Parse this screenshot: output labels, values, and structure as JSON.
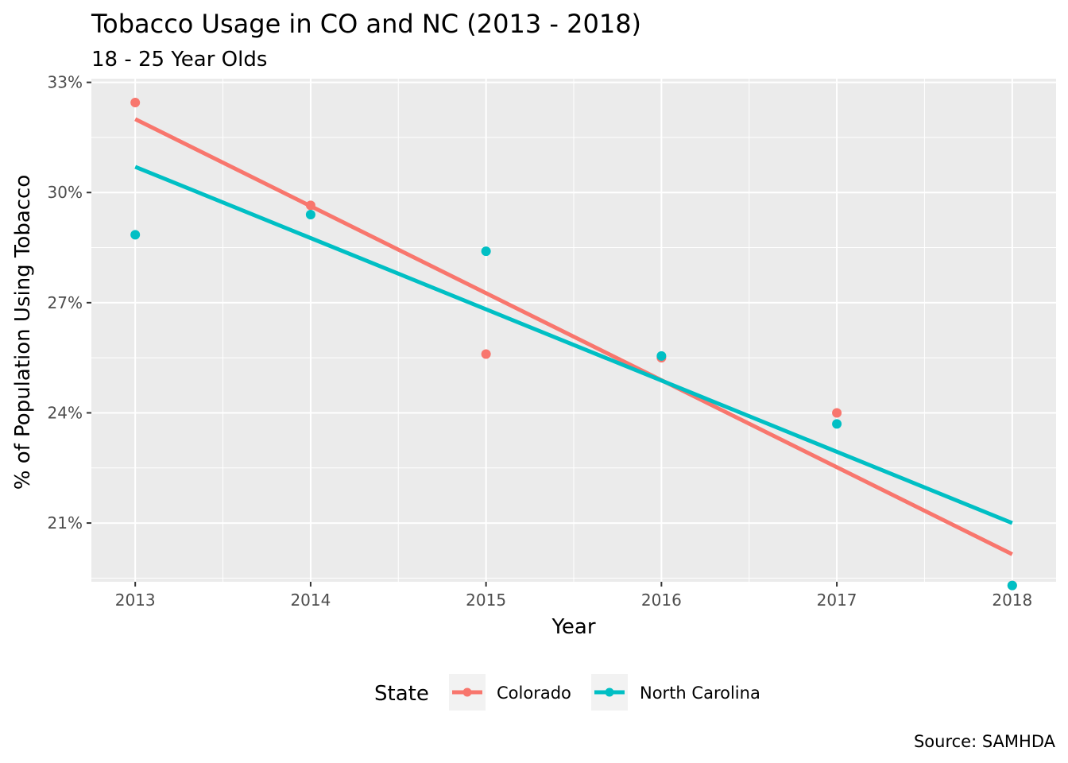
{
  "chart_data": {
    "type": "scatter",
    "title": "Tobacco Usage in CO and NC (2013 - 2018)",
    "subtitle": "18 - 25 Year Olds",
    "xlabel": "Year",
    "ylabel": "% of Population Using Tobacco",
    "caption": "Source: SAMHDA",
    "x": [
      2013,
      2014,
      2015,
      2016,
      2017,
      2018
    ],
    "x_tick_labels": [
      "2013",
      "2014",
      "2015",
      "2016",
      "2017",
      "2018"
    ],
    "y_ticks": [
      21,
      24,
      27,
      30,
      33
    ],
    "y_tick_labels": [
      "21%",
      "24%",
      "27%",
      "30%",
      "33%"
    ],
    "xlim": [
      2012.75,
      2018.25
    ],
    "ylim": [
      19.4,
      33.1
    ],
    "grid": true,
    "legend": {
      "title": "State",
      "position": "bottom"
    },
    "series": [
      {
        "name": "Colorado",
        "color": "#F8766D",
        "values": [
          32.45,
          29.65,
          25.6,
          25.5,
          24.0,
          19.3
        ],
        "trend_line": [
          32.0,
          20.15
        ]
      },
      {
        "name": "North Carolina",
        "color": "#00BFC4",
        "values": [
          28.85,
          29.4,
          28.4,
          25.55,
          23.7,
          19.3
        ],
        "trend_line": [
          30.7,
          21.0
        ]
      }
    ]
  }
}
